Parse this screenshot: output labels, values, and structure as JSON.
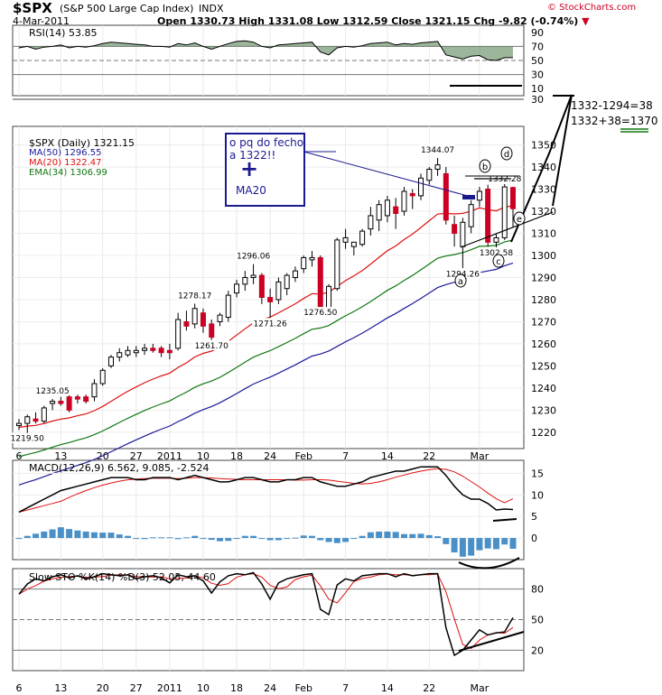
{
  "header": {
    "symbol": "$SPX",
    "name": "(S&P 500 Large Cap Index)",
    "exchange": "INDX",
    "date": "4-Mar-2011",
    "ohlc_text": "Open 1330.73  High 1331.08  Low 1312.59  Close 1321.15  Chg -9.82 (-0.74%)",
    "chg_marker": "▼",
    "watermark": "© StockCharts.com"
  },
  "rsi_panel": {
    "label": "RSI(14) 53.85",
    "yticks": [
      "90",
      "70",
      "50",
      "30",
      "10"
    ]
  },
  "price_panel": {
    "legend": {
      "title": "$SPX (Daily) 1321.15",
      "ma50": "MA(50) 1296.55",
      "ma20": "MA(20) 1322.47",
      "ema34": "EMA(34) 1306.99"
    },
    "yticks": [
      "1350",
      "1340",
      "1330",
      "1320",
      "1310",
      "1300",
      "1290",
      "1280",
      "1270",
      "1260",
      "1250",
      "1240",
      "1230",
      "1220"
    ],
    "data_labels": [
      "1235.05",
      "1219.50",
      "1278.17",
      "1261.70",
      "1296.06",
      "1271.26",
      "1276.50",
      "1344.07",
      "1294.26",
      "1302.58",
      "1332.28"
    ],
    "annotation_box": {
      "line1": "o pq do fecho",
      "line2": "a 1322!!",
      "plus": "+",
      "line3": "MA20"
    },
    "target_lines": {
      "line1": "1332-1294=38",
      "line2": "1332+38=1370"
    },
    "wave_labels": {
      "a": "a",
      "b": "b",
      "c": "c",
      "d": "d",
      "e": "e"
    }
  },
  "macd_panel": {
    "label": "MACD(12,26,9) 6.562, 9.085, -2.524",
    "yticks": [
      "15",
      "10",
      "5",
      "0"
    ]
  },
  "sto_panel": {
    "label": "Slow STO %K(14) %D(3) 52.05, 44.60",
    "yticks": [
      "80",
      "50",
      "20"
    ]
  },
  "x_axis": {
    "labels": [
      "6",
      "13",
      "20",
      "27",
      "2011",
      "10",
      "18",
      "24",
      "Feb",
      "7",
      "14",
      "22",
      "Mar"
    ]
  },
  "colors": {
    "up_candle": "#ffffff",
    "down_candle": "#cc0022",
    "ma50": "#1a1a9a",
    "ma20": "#e01010",
    "ema34": "#117711",
    "macd_hist": "#4a90c8",
    "rsi_fill": "#4a7a4a",
    "annot_blue": "#1a1a90",
    "target_green": "#117711"
  },
  "chart_data": {
    "type": "candlestick",
    "title": "$SPX (S&P 500 Large Cap Index) INDX",
    "date_labels": [
      "6",
      "13",
      "20",
      "27",
      "2011",
      "10",
      "18",
      "24",
      "Feb",
      "7",
      "14",
      "22",
      "Mar"
    ],
    "price_axis_range": [
      1213,
      1358
    ],
    "candles": [
      {
        "o": 1223,
        "h": 1226,
        "l": 1221,
        "c": 1224
      },
      {
        "o": 1224,
        "h": 1228,
        "l": 1219.5,
        "c": 1227
      },
      {
        "o": 1226,
        "h": 1229,
        "l": 1224,
        "c": 1225
      },
      {
        "o": 1225,
        "h": 1232,
        "l": 1224,
        "c": 1231
      },
      {
        "o": 1233,
        "h": 1235.05,
        "l": 1230,
        "c": 1234
      },
      {
        "o": 1234,
        "h": 1236,
        "l": 1232,
        "c": 1233
      },
      {
        "o": 1236,
        "h": 1237,
        "l": 1229,
        "c": 1230
      },
      {
        "o": 1236,
        "h": 1237,
        "l": 1233,
        "c": 1235
      },
      {
        "o": 1236,
        "h": 1237,
        "l": 1233,
        "c": 1234
      },
      {
        "o": 1236,
        "h": 1244,
        "l": 1234,
        "c": 1242
      },
      {
        "o": 1242,
        "h": 1249,
        "l": 1241,
        "c": 1248
      },
      {
        "o": 1250,
        "h": 1255,
        "l": 1249,
        "c": 1254
      },
      {
        "o": 1254,
        "h": 1258,
        "l": 1252,
        "c": 1256
      },
      {
        "o": 1255,
        "h": 1259,
        "l": 1254,
        "c": 1257
      },
      {
        "o": 1256,
        "h": 1259,
        "l": 1254,
        "c": 1257
      },
      {
        "o": 1257,
        "h": 1260,
        "l": 1255,
        "c": 1258
      },
      {
        "o": 1258,
        "h": 1260,
        "l": 1256,
        "c": 1257
      },
      {
        "o": 1258,
        "h": 1259,
        "l": 1254,
        "c": 1256
      },
      {
        "o": 1257,
        "h": 1260,
        "l": 1253,
        "c": 1256
      },
      {
        "o": 1258,
        "h": 1274,
        "l": 1257,
        "c": 1271
      },
      {
        "o": 1270,
        "h": 1275,
        "l": 1266,
        "c": 1268
      },
      {
        "o": 1269,
        "h": 1278.17,
        "l": 1267,
        "c": 1276
      },
      {
        "o": 1274,
        "h": 1276,
        "l": 1265,
        "c": 1268
      },
      {
        "o": 1269,
        "h": 1271,
        "l": 1261.7,
        "c": 1263
      },
      {
        "o": 1270,
        "h": 1274,
        "l": 1268,
        "c": 1273
      },
      {
        "o": 1272,
        "h": 1284,
        "l": 1270,
        "c": 1282
      },
      {
        "o": 1283,
        "h": 1289,
        "l": 1281,
        "c": 1287
      },
      {
        "o": 1287,
        "h": 1293,
        "l": 1284,
        "c": 1290
      },
      {
        "o": 1290,
        "h": 1296.06,
        "l": 1287,
        "c": 1291
      },
      {
        "o": 1291,
        "h": 1292,
        "l": 1278,
        "c": 1281
      },
      {
        "o": 1281,
        "h": 1285,
        "l": 1271.26,
        "c": 1279
      },
      {
        "o": 1280,
        "h": 1290,
        "l": 1278,
        "c": 1288
      },
      {
        "o": 1285,
        "h": 1292,
        "l": 1282,
        "c": 1291
      },
      {
        "o": 1290,
        "h": 1295,
        "l": 1288,
        "c": 1293
      },
      {
        "o": 1294,
        "h": 1300,
        "l": 1292,
        "c": 1299
      },
      {
        "o": 1298,
        "h": 1302,
        "l": 1295,
        "c": 1299
      },
      {
        "o": 1299,
        "h": 1300,
        "l": 1276.5,
        "c": 1276
      },
      {
        "o": 1276,
        "h": 1287,
        "l": 1274,
        "c": 1286
      },
      {
        "o": 1285,
        "h": 1308,
        "l": 1284,
        "c": 1307
      },
      {
        "o": 1306,
        "h": 1312,
        "l": 1303,
        "c": 1308
      },
      {
        "o": 1304,
        "h": 1306,
        "l": 1300,
        "c": 1306
      },
      {
        "o": 1305,
        "h": 1312,
        "l": 1304,
        "c": 1311
      },
      {
        "o": 1312,
        "h": 1322,
        "l": 1309,
        "c": 1318
      },
      {
        "o": 1316,
        "h": 1325,
        "l": 1311,
        "c": 1323
      },
      {
        "o": 1318,
        "h": 1327,
        "l": 1315,
        "c": 1325
      },
      {
        "o": 1322,
        "h": 1326,
        "l": 1312,
        "c": 1319
      },
      {
        "o": 1320,
        "h": 1331,
        "l": 1318,
        "c": 1329
      },
      {
        "o": 1328,
        "h": 1330,
        "l": 1321,
        "c": 1327
      },
      {
        "o": 1327,
        "h": 1337,
        "l": 1325,
        "c": 1335
      },
      {
        "o": 1334,
        "h": 1340,
        "l": 1332,
        "c": 1339
      },
      {
        "o": 1339,
        "h": 1344.07,
        "l": 1336,
        "c": 1341
      },
      {
        "o": 1337,
        "h": 1340,
        "l": 1314,
        "c": 1316
      },
      {
        "o": 1314,
        "h": 1318,
        "l": 1304,
        "c": 1310
      },
      {
        "o": 1304,
        "h": 1317,
        "l": 1294.26,
        "c": 1315
      },
      {
        "o": 1313,
        "h": 1325,
        "l": 1310,
        "c": 1323
      },
      {
        "o": 1325,
        "h": 1331,
        "l": 1322,
        "c": 1329
      },
      {
        "o": 1330,
        "h": 1332,
        "l": 1304,
        "c": 1306
      },
      {
        "o": 1306,
        "h": 1310,
        "l": 1302.58,
        "c": 1308
      },
      {
        "o": 1308,
        "h": 1332.28,
        "l": 1307,
        "c": 1331
      },
      {
        "o": 1330.73,
        "h": 1331.08,
        "l": 1312.59,
        "c": 1321.15
      }
    ],
    "ma20_start": 1222,
    "ma20_end": 1322.47,
    "ema34_start": 1208,
    "ema34_end": 1306.99,
    "ma50_start": 1195,
    "ma50_end": 1296.55,
    "rsi_range": [
      0,
      100
    ],
    "macd_range": [
      -5,
      18
    ],
    "sto_range": [
      0,
      100
    ]
  }
}
